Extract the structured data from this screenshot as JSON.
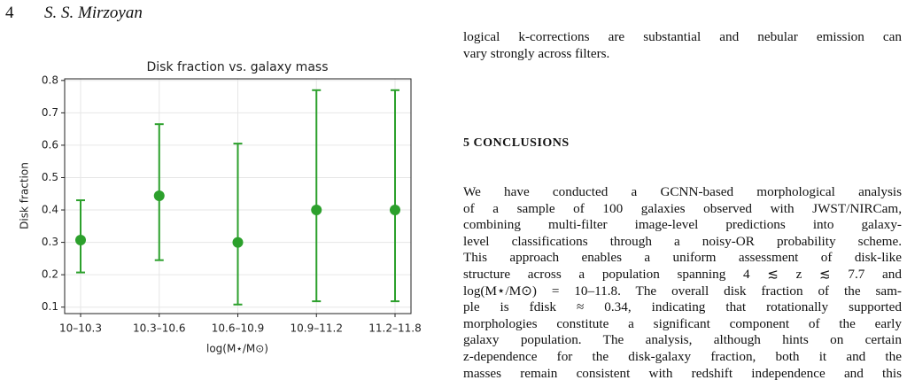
{
  "header": {
    "page": "4",
    "author": "S. S. Mirzoyan"
  },
  "chart_data": {
    "type": "errorbar",
    "title": "Disk fraction vs. galaxy mass",
    "categories": [
      "10–10.3",
      "10.3–10.6",
      "10.6–10.9",
      "10.9–11.2",
      "11.2–11.8"
    ],
    "values": [
      0.307,
      0.444,
      0.3,
      0.4,
      0.4
    ],
    "errors_minus": [
      0.1,
      0.199,
      0.192,
      0.282,
      0.282
    ],
    "errors_plus": [
      0.123,
      0.221,
      0.305,
      0.37,
      0.37
    ],
    "color": "#2ca02c",
    "x_label": "log(M⋆/M⊙)",
    "y_label": "Disk fraction",
    "ylim": [
      0.08,
      0.805
    ],
    "yticks": [
      0.1,
      0.2,
      0.3,
      0.4,
      0.5,
      0.6,
      0.7,
      0.8
    ],
    "grid": true
  },
  "text": {
    "intro_lines": [
      "logical k-corrections are substantial and nebular emission can",
      "vary strongly across filters."
    ],
    "section_heading": "5 CONCLUSIONS",
    "paragraph_lines": [
      "We have conducted a GCNN-based morphological analysis",
      "of a sample of 100 galaxies observed with JWST/NIRCam,",
      "combining multi-filter image-level predictions into galaxy-",
      "level classifications through a noisy-OR probability scheme.",
      "This approach enables a uniform assessment of disk-like",
      "structure across a population spanning 4 ≲ z ≲ 7.7 and",
      "log(M⋆/M⊙) = 10–11.8. The overall disk fraction of the sam-",
      "ple is fdisk ≈ 0.34, indicating that rotationally supported",
      "morphologies constitute a significant component of the early",
      "galaxy population. The analysis, although hints on certain",
      "z-dependence for the disk-galaxy fraction, both it and the",
      "masses remain consistent with redshift independence and this"
    ]
  }
}
